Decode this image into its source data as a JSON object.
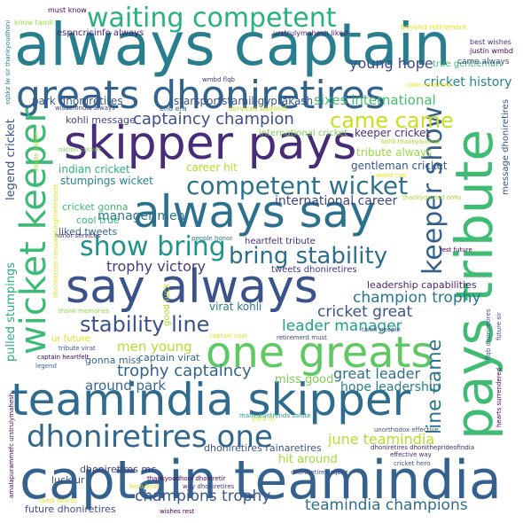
{
  "cloud": {
    "background": "#ffffff",
    "words": [
      {
        "text": "always captain",
        "color": "#287d8e"
      },
      {
        "text": "captain teamindia",
        "color": "#34618d"
      },
      {
        "text": "pays tribute",
        "color": "#3ebc73"
      },
      {
        "text": "skipper pays",
        "color": "#472c7a"
      },
      {
        "text": "always say",
        "color": "#2d708e"
      },
      {
        "text": "say always",
        "color": "#3a538b"
      },
      {
        "text": "teamindia skipper",
        "color": "#2f6b8e"
      },
      {
        "text": "one greats",
        "color": "#5ec962"
      },
      {
        "text": "greats dhoniretires",
        "color": "#33638d"
      },
      {
        "text": "wicket keeper",
        "color": "#3bbb75"
      },
      {
        "text": "dhoniretires one",
        "color": "#31668e"
      },
      {
        "text": "waiting competent",
        "color": "#2ab07f"
      },
      {
        "text": "competent wicket",
        "color": "#2c728e"
      },
      {
        "text": "show bring",
        "color": "#21918c"
      },
      {
        "text": "keeper show",
        "color": "#35608d"
      },
      {
        "text": "bring stability",
        "color": "#2e6d8e"
      },
      {
        "text": "stability line",
        "color": "#3b528b"
      },
      {
        "text": "line came",
        "color": "#2c738e"
      },
      {
        "text": "came came",
        "color": "#c8e020"
      },
      {
        "text": "captaincy champion",
        "color": "#3c4f8a"
      },
      {
        "text": "trophy captaincy",
        "color": "#33638d"
      },
      {
        "text": "june teamindia",
        "color": "#b5de2b"
      },
      {
        "text": "champion trophy",
        "color": "#2a778e"
      },
      {
        "text": "champions trophy",
        "color": "#3a548c"
      },
      {
        "text": "teamindia champions",
        "color": "#2e6e8e"
      },
      {
        "text": "young hope",
        "color": "#3e4989"
      },
      {
        "text": "sixes international",
        "color": "#44bf70"
      },
      {
        "text": "trophy victory",
        "color": "#443b84"
      },
      {
        "text": "cricket history",
        "color": "#25848e"
      },
      {
        "text": "leader manager",
        "color": "#1f9e89"
      },
      {
        "text": "cricket great",
        "color": "#3b528b"
      },
      {
        "text": "great leader",
        "color": "#2d718e"
      },
      {
        "text": "men young",
        "color": "#b5de2b"
      },
      {
        "text": "miss good",
        "color": "#7ad151"
      },
      {
        "text": "hope leadership",
        "color": "#277f8e"
      },
      {
        "text": "around park",
        "color": "#31678e"
      },
      {
        "text": "manager men",
        "color": "#2c728e"
      },
      {
        "text": "international career",
        "color": "#404688"
      },
      {
        "text": "park dhoniretires",
        "color": "#39568c"
      },
      {
        "text": "starsportstamil gvprakash",
        "color": "#39568c"
      },
      {
        "text": "kohli message",
        "color": "#3e4989"
      },
      {
        "text": "indian cricket",
        "color": "#2db27d"
      },
      {
        "text": "stumpings wicket",
        "color": "#26828e"
      },
      {
        "text": "legend cricket",
        "color": "#3b528b"
      },
      {
        "text": "pulled stumpings",
        "color": "#28ae80"
      },
      {
        "text": "virat kohli",
        "color": "#2a788e"
      },
      {
        "text": "captain virat",
        "color": "#31688e"
      },
      {
        "text": "gonna miss",
        "color": "#31688e"
      },
      {
        "text": "hit around",
        "color": "#9fda3a"
      },
      {
        "text": "luck ur",
        "color": "#3b528b"
      },
      {
        "text": "future dhoniretires",
        "color": "#3d4d8a"
      },
      {
        "text": "dhoniretires mc",
        "color": "#3f4788"
      },
      {
        "text": "dhoniretires rainaretires",
        "color": "#3b528b"
      },
      {
        "text": "keeper cricket",
        "color": "#472f7d"
      },
      {
        "text": "tribute always",
        "color": "#9bd93c"
      },
      {
        "text": "gentleman cricket",
        "color": "#39568c"
      },
      {
        "text": "career hit",
        "color": "#b8de29"
      },
      {
        "text": "cool true",
        "color": "#2eb37c"
      },
      {
        "text": "liked tweets",
        "color": "#33628d"
      },
      {
        "text": "cricket gonna",
        "color": "#3dbc74"
      },
      {
        "text": "true gentleman",
        "color": "#3dbc74"
      },
      {
        "text": "came always",
        "color": "#3e4989"
      },
      {
        "text": "heartfelt tribute",
        "color": "#472f7d"
      },
      {
        "text": "tweets dhoniretires",
        "color": "#443983"
      },
      {
        "text": "leadership capabilities",
        "color": "#482677"
      },
      {
        "text": "espncricinfo always",
        "color": "#482374"
      },
      {
        "text": "message dhoniretires",
        "color": "#3b528b"
      },
      {
        "text": "good luck",
        "color": "#b5de2b"
      },
      {
        "text": "ur future",
        "color": "#dde318"
      },
      {
        "text": "urstrulymahesh liked",
        "color": "#481b6d"
      },
      {
        "text": "international cricket",
        "color": "#7ad151"
      },
      {
        "text": "must know",
        "color": "#440154"
      },
      {
        "text": "know tamil",
        "color": "#9bd93c"
      },
      {
        "text": "best wishes",
        "color": "#46327e"
      },
      {
        "text": "justin wmbd",
        "color": "#440154"
      },
      {
        "text": "beyond retirement",
        "color": "#e5e419"
      },
      {
        "text": "kohli thankyoumsd",
        "color": "#a8db34"
      },
      {
        "text": "world cup",
        "color": "#e5e419"
      },
      {
        "text": "thankyoumsd ohhs",
        "color": "#a8db34"
      },
      {
        "text": "wmbd flqb",
        "color": "#46327e"
      },
      {
        "text": "end era",
        "color": "#31688e"
      },
      {
        "text": "services beyond",
        "color": "#c8e020"
      },
      {
        "text": "sqbkz lw sir thankyoudhoni",
        "color": "#287d8e"
      },
      {
        "text": "wisdenindia always",
        "color": "#404688"
      },
      {
        "text": "nation cricket",
        "color": "#7ad151"
      },
      {
        "text": "salute nation",
        "color": "#a8db34"
      },
      {
        "text": "calm collected",
        "color": "#e5e419"
      },
      {
        "text": "rest future",
        "color": "#440154"
      },
      {
        "text": "honor services",
        "color": "#482677"
      },
      {
        "text": "people honor",
        "color": "#2a788e"
      },
      {
        "text": "dhoniretires rainawishinghimthebest",
        "color": "#dde318"
      },
      {
        "text": "thank memories",
        "color": "#8fd744"
      },
      {
        "text": "tribute virat",
        "color": "#3b528b"
      },
      {
        "text": "captain heartfelt",
        "color": "#440154"
      },
      {
        "text": "captain cool",
        "color": "#dde318"
      },
      {
        "text": "retirement must",
        "color": "#3e4989"
      },
      {
        "text": "tamil people",
        "color": "#3b528b"
      },
      {
        "text": "vhhs th",
        "color": "#dde318"
      },
      {
        "text": "mahesfantrends salute",
        "color": "#1f9e89"
      },
      {
        "text": "unorthodox effective",
        "color": "#3b528b"
      },
      {
        "text": "dhoniretires sqbkz",
        "color": "#3e4989"
      },
      {
        "text": "thankyoudhoni dhoniretir",
        "color": "#440154"
      },
      {
        "text": "way dhoniretires",
        "color": "#46327e"
      },
      {
        "text": "dhoniretires dhonitheprideofindia",
        "color": "#482677"
      },
      {
        "text": "effective way",
        "color": "#482677"
      },
      {
        "text": "cricket hero",
        "color": "#3b528b"
      },
      {
        "text": "hero best",
        "color": "#dde318"
      },
      {
        "text": "tamil hearts",
        "color": "#dde318"
      },
      {
        "text": "wishes rest",
        "color": "#440154"
      },
      {
        "text": "amalapurammefc urstrulymahesh",
        "color": "#440154"
      },
      {
        "text": "legend",
        "color": "#31688e"
      },
      {
        "text": "flqb dhoniretires",
        "color": "#3b528b"
      },
      {
        "text": "future sir",
        "color": "#3e4989"
      },
      {
        "text": "hearts surrendered",
        "color": "#440154"
      }
    ]
  }
}
